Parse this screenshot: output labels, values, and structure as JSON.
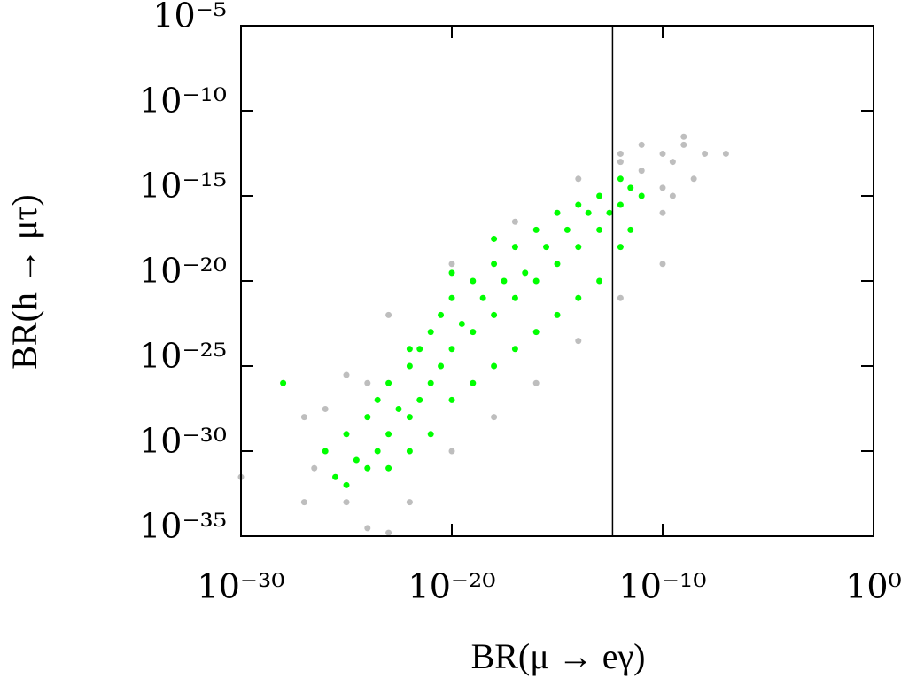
{
  "chart_data": {
    "type": "scatter",
    "x_label": "BR(μ → eγ)",
    "y_label": "BR(h → μτ)",
    "log_x": true,
    "log_y": true,
    "grid": false,
    "xlim": [
      1e-30,
      1
    ],
    "ylim": [
      1e-35,
      1e-05
    ],
    "xticks": [
      {
        "value": 1e-30,
        "label": "10⁻³⁰"
      },
      {
        "value": 1e-20,
        "label": "10⁻²⁰"
      },
      {
        "value": 1e-10,
        "label": "10⁻¹⁰"
      },
      {
        "value": 1,
        "label": "10⁰"
      }
    ],
    "yticks": [
      {
        "value": 1e-35,
        "label": "10⁻³⁵"
      },
      {
        "value": 1e-30,
        "label": "10⁻³⁰"
      },
      {
        "value": 1e-25,
        "label": "10⁻²⁵"
      },
      {
        "value": 1e-20,
        "label": "10⁻²⁰"
      },
      {
        "value": 1e-15,
        "label": "10⁻¹⁵"
      },
      {
        "value": 1e-10,
        "label": "10⁻¹⁰"
      },
      {
        "value": 1e-05,
        "label": "10⁻⁵"
      }
    ],
    "reference_line_x": 4.2e-13,
    "reference_line_color": "#000000",
    "series": [
      {
        "color": "#bebebe",
        "x": [
          1e-30,
          1e-27,
          3e-27,
          1e-25,
          1e-24,
          1e-23,
          1e-22,
          1e-20,
          1e-18,
          1e-16,
          1e-14,
          1e-12,
          1e-10,
          1e-11,
          1e-10,
          1e-09,
          3e-10,
          1e-08,
          3e-09,
          1e-10,
          1e-07,
          1e-09,
          1e-12,
          1e-14,
          1e-17,
          1e-20,
          1e-23,
          1e-25,
          1e-27,
          1e-24,
          1e-26,
          1e-12,
          1e-11,
          1e-10,
          3e-10
        ],
        "y": [
          3e-32,
          1e-33,
          1e-31,
          1e-33,
          3e-35,
          1.6e-35,
          1e-33,
          1e-30,
          1e-28,
          1e-26,
          3e-24,
          1e-21,
          1e-19,
          3e-14,
          3e-13,
          1e-12,
          1e-13,
          3e-13,
          1e-14,
          1e-16,
          3e-13,
          3e-12,
          1e-13,
          1e-14,
          3e-17,
          1e-19,
          1e-22,
          3e-26,
          1e-28,
          1e-26,
          3e-28,
          3e-13,
          1e-12,
          3e-15,
          1e-15
        ]
      },
      {
        "color": "#00ff00",
        "x": [
          1e-26,
          3e-26,
          1e-25,
          1e-25,
          3e-25,
          1e-24,
          1e-24,
          3e-24,
          3e-24,
          1e-23,
          1e-23,
          1e-23,
          3e-23,
          1e-22,
          1e-22,
          1e-22,
          3e-22,
          3e-22,
          1e-21,
          1e-21,
          1e-21,
          3e-21,
          3e-21,
          1e-20,
          1e-20,
          1e-20,
          3e-20,
          1e-19,
          1e-19,
          1e-19,
          3e-19,
          1e-18,
          1e-18,
          1e-18,
          3e-18,
          1e-17,
          1e-17,
          1e-17,
          3e-17,
          1e-16,
          1e-16,
          1e-16,
          3e-16,
          1e-15,
          1e-15,
          1e-15,
          3e-15,
          1e-14,
          1e-14,
          1e-14,
          3e-14,
          1e-13,
          1e-13,
          1e-13,
          3e-13,
          1e-12,
          1e-12,
          1e-12,
          3e-12,
          1e-11,
          3e-12,
          1e-28,
          1e-22,
          1e-20,
          1e-18
        ],
        "y": [
          1e-30,
          3e-32,
          1e-29,
          1e-32,
          3e-31,
          1e-28,
          1e-31,
          1e-27,
          1e-30,
          1e-26,
          1e-29,
          1e-31,
          3e-28,
          1e-25,
          1e-28,
          1e-30,
          1e-24,
          1e-27,
          1e-23,
          1e-26,
          1e-29,
          1e-22,
          1e-25,
          1e-21,
          1e-24,
          1e-27,
          3e-23,
          1e-20,
          1e-23,
          1e-26,
          1e-21,
          1e-19,
          1e-22,
          1e-25,
          1e-20,
          1e-18,
          1e-21,
          1e-24,
          3e-20,
          1e-17,
          1e-20,
          1e-23,
          1e-18,
          1e-16,
          1e-19,
          1e-22,
          1e-17,
          3e-16,
          1e-18,
          1e-21,
          1e-16,
          1e-15,
          1e-17,
          1e-20,
          1e-16,
          1e-14,
          3e-16,
          1e-18,
          3e-15,
          1e-15,
          1e-17,
          1e-26,
          1e-24,
          3e-20,
          3e-18
        ]
      }
    ]
  }
}
